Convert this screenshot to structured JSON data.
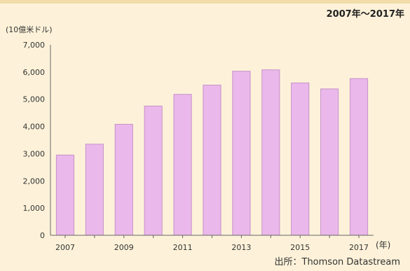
{
  "chart_data": {
    "type": "bar",
    "period": "2007年～2017年",
    "ylabel": "(10億米ドル)",
    "xlabel": "(年)",
    "source": "出所：Thomson Datastream",
    "categories": [
      "2007",
      "2008",
      "2009",
      "2010",
      "2011",
      "2012",
      "2013",
      "2014",
      "2015",
      "2016",
      "2017"
    ],
    "x_tick_labels": [
      "2007",
      "",
      "2009",
      "",
      "2011",
      "",
      "2013",
      "",
      "2015",
      "",
      "2017"
    ],
    "values": [
      2950,
      3350,
      4080,
      4750,
      5180,
      5520,
      6030,
      6080,
      5600,
      5380,
      5760
    ],
    "ylim": [
      0,
      7000
    ],
    "yticks": [
      0,
      1000,
      2000,
      3000,
      4000,
      5000,
      6000,
      7000
    ],
    "ytick_labels": [
      "0",
      "1,000",
      "2,000",
      "3,000",
      "4,000",
      "5,000",
      "6,000",
      "7,000"
    ],
    "bar_color": "#eab8ea",
    "bar_edge_color": "#c692c9",
    "background_color": "#fdf2d9",
    "grid": false
  }
}
